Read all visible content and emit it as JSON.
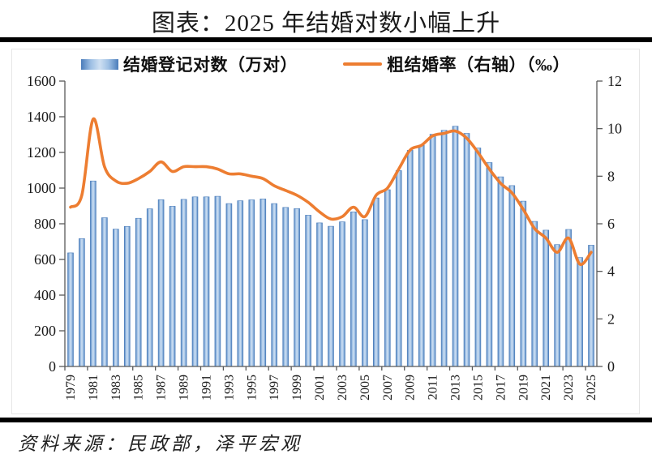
{
  "page": {
    "title": "图表：2025 年结婚对数小幅上升",
    "source": "资料来源：民政部，泽平宏观"
  },
  "legend": {
    "bars_label": "结婚登记对数（万对）",
    "line_label": "粗结婚率（右轴）（‰）"
  },
  "colors": {
    "bar_edge": "#4a7cba",
    "bar_mid": "#9dbfe4",
    "bar_light": "#cfe0f2",
    "line": "#ed7d31",
    "axis": "#595959",
    "divider": "#000000"
  },
  "chart_data": {
    "type": "bar",
    "title": "图表：2025 年结婚对数小幅上升",
    "xlabel": "",
    "ylabel_left": "结婚登记对数（万对）",
    "ylabel_right": "粗结婚率（‰）",
    "legend_position": "top",
    "grid": false,
    "x": [
      1979,
      1980,
      1981,
      1982,
      1983,
      1984,
      1985,
      1986,
      1987,
      1988,
      1989,
      1990,
      1991,
      1992,
      1993,
      1994,
      1995,
      1996,
      1997,
      1998,
      1999,
      2000,
      2001,
      2002,
      2003,
      2004,
      2005,
      2006,
      2007,
      2008,
      2009,
      2010,
      2011,
      2012,
      2013,
      2014,
      2015,
      2016,
      2017,
      2018,
      2019,
      2020,
      2021,
      2022,
      2023,
      2024,
      2025
    ],
    "x_tick_labels": [
      "1979",
      "1981",
      "1983",
      "1985",
      "1987",
      "1989",
      "1991",
      "1993",
      "1995",
      "1997",
      "1999",
      "2001",
      "2003",
      "2005",
      "2007",
      "2009",
      "2011",
      "2013",
      "2015",
      "2017",
      "2019",
      "2021",
      "2023",
      "2025"
    ],
    "series": [
      {
        "name": "结婚登记对数（万对）",
        "type": "bar",
        "axis": "left",
        "values": [
          637,
          717,
          1040,
          834,
          770,
          785,
          831,
          884,
          935,
          898,
          937,
          951,
          951,
          954,
          913,
          929,
          934,
          939,
          913,
          892,
          885,
          848,
          805,
          786,
          811,
          867,
          823,
          945,
          991,
          1098,
          1212,
          1241,
          1302,
          1324,
          1347,
          1307,
          1225,
          1143,
          1063,
          1014,
          927,
          813,
          764,
          683,
          768,
          611,
          680
        ]
      },
      {
        "name": "粗结婚率（右轴）（‰）",
        "type": "line",
        "axis": "right",
        "values": [
          6.7,
          7.2,
          10.4,
          8.4,
          7.8,
          7.7,
          7.9,
          8.2,
          8.6,
          8.2,
          8.4,
          8.4,
          8.4,
          8.3,
          8.1,
          8.1,
          8.0,
          7.9,
          7.6,
          7.4,
          7.2,
          6.9,
          6.5,
          6.2,
          6.3,
          6.7,
          6.3,
          7.2,
          7.5,
          8.3,
          9.1,
          9.3,
          9.7,
          9.8,
          9.9,
          9.6,
          9.0,
          8.3,
          7.7,
          7.3,
          6.6,
          5.8,
          5.4,
          4.8,
          5.4,
          4.3,
          4.8
        ]
      }
    ],
    "left_axis": {
      "min": 0,
      "max": 1600,
      "ticks": [
        0,
        200,
        400,
        600,
        800,
        1000,
        1200,
        1400,
        1600
      ]
    },
    "right_axis": {
      "min": 0,
      "max": 12,
      "ticks": [
        0,
        2,
        4,
        6,
        8,
        10,
        12
      ]
    }
  }
}
